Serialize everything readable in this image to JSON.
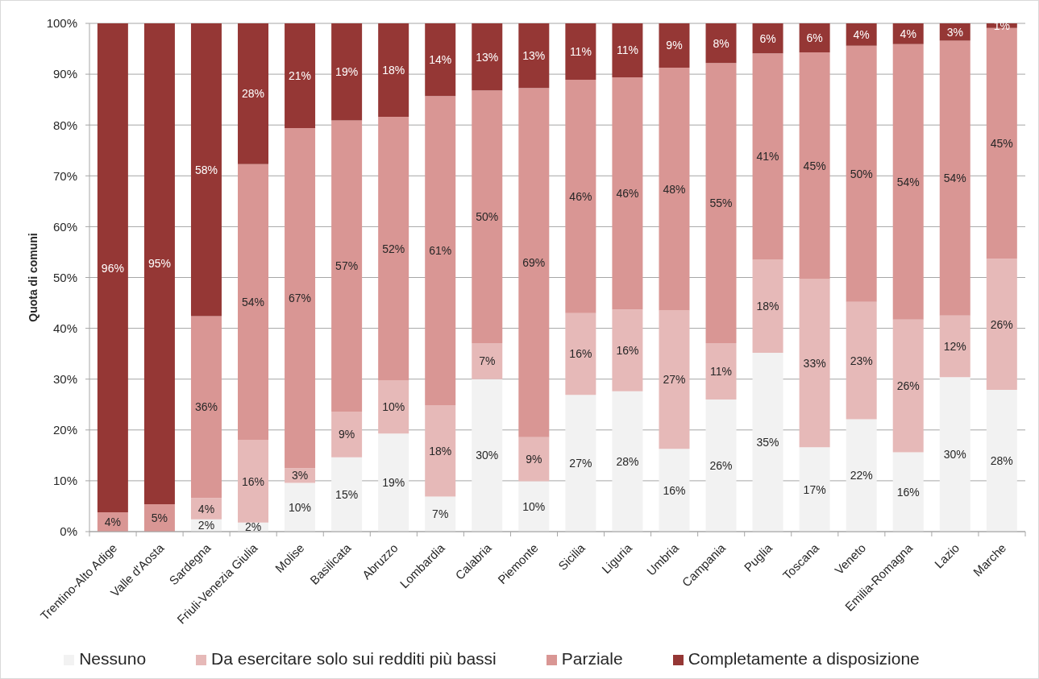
{
  "chart_data": {
    "type": "bar",
    "stacked": true,
    "ylabel": "Quota di comuni",
    "categories": [
      "Trentino-Alto Adige",
      "Valle d'Aosta",
      "Sardegna",
      "Friuli-Venezia Giulia",
      "Molise",
      "Basilicata",
      "Abruzzo",
      "Lombardia",
      "Calabria",
      "Piemonte",
      "Sicilia",
      "Liguria",
      "Umbria",
      "Campania",
      "Puglia",
      "Toscana",
      "Veneto",
      "Emilia-Romagna",
      "Lazio",
      "Marche"
    ],
    "series": [
      {
        "name": "Nessuno",
        "color": "#f2f2f2",
        "values": [
          0,
          0,
          2.4,
          1.8,
          9.6,
          14.6,
          19.3,
          6.9,
          30.0,
          9.9,
          26.9,
          27.6,
          16.3,
          26.0,
          35.2,
          16.6,
          22.1,
          15.6,
          30.4,
          27.9
        ],
        "value_labels": [
          null,
          null,
          "2%",
          "2%",
          "10%",
          "15%",
          "19%",
          "7%",
          "30%",
          "10%",
          "27%",
          "28%",
          "16%",
          "26%",
          "35%",
          "17%",
          "22%",
          "16%",
          "30%",
          "28%"
        ]
      },
      {
        "name": "Da esercitare solo sui redditi più bassi",
        "color": "#e6b9b8",
        "values": [
          0,
          0,
          4.2,
          16.2,
          2.9,
          9.0,
          10.4,
          18.0,
          7.1,
          8.7,
          16.1,
          16.1,
          27.2,
          11.1,
          18.3,
          33.1,
          23.1,
          26.1,
          12.1,
          25.8
        ],
        "value_labels": [
          null,
          null,
          "4%",
          "16%",
          "3%",
          "9%",
          "10%",
          "18%",
          "7%",
          "9%",
          "16%",
          "16%",
          "27%",
          "11%",
          "18%",
          "33%",
          "23%",
          "26%",
          "12%",
          "26%"
        ]
      },
      {
        "name": "Parziale",
        "color": "#d99694",
        "values": [
          3.8,
          5.4,
          35.8,
          54.3,
          66.9,
          57.3,
          51.9,
          60.8,
          49.7,
          68.7,
          45.9,
          45.7,
          47.8,
          55.1,
          40.6,
          44.6,
          50.4,
          54.2,
          54.1,
          45.4
        ],
        "value_labels": [
          "4%",
          "5%",
          "36%",
          "54%",
          "67%",
          "57%",
          "52%",
          "61%",
          "50%",
          "69%",
          "46%",
          "46%",
          "48%",
          "55%",
          "41%",
          "45%",
          "50%",
          "54%",
          "54%",
          "45%"
        ]
      },
      {
        "name": "Completamente a disposizione",
        "color": "#953735",
        "values": [
          96.2,
          94.6,
          57.6,
          27.7,
          20.6,
          19.1,
          18.4,
          14.3,
          13.2,
          12.7,
          11.1,
          10.6,
          8.7,
          7.8,
          5.9,
          5.7,
          4.4,
          4.1,
          3.4,
          0.9
        ],
        "value_labels": [
          "96%",
          "95%",
          "58%",
          "28%",
          "21%",
          "19%",
          "18%",
          "14%",
          "13%",
          "13%",
          "11%",
          "11%",
          "9%",
          "8%",
          "6%",
          "6%",
          "4%",
          "4%",
          "3%",
          "1%"
        ]
      }
    ],
    "ylim": [
      0,
      100
    ],
    "yticks": [
      {
        "value": 0,
        "label": "0%"
      },
      {
        "value": 10,
        "label": "10%"
      },
      {
        "value": 20,
        "label": "20%"
      },
      {
        "value": 30,
        "label": "30%"
      },
      {
        "value": 40,
        "label": "40%"
      },
      {
        "value": 50,
        "label": "50%"
      },
      {
        "value": 60,
        "label": "60%"
      },
      {
        "value": 70,
        "label": "70%"
      },
      {
        "value": 80,
        "label": "80%"
      },
      {
        "value": 90,
        "label": "90%"
      },
      {
        "value": 100,
        "label": "100%"
      }
    ],
    "grid": "y",
    "legend": "bottom"
  }
}
